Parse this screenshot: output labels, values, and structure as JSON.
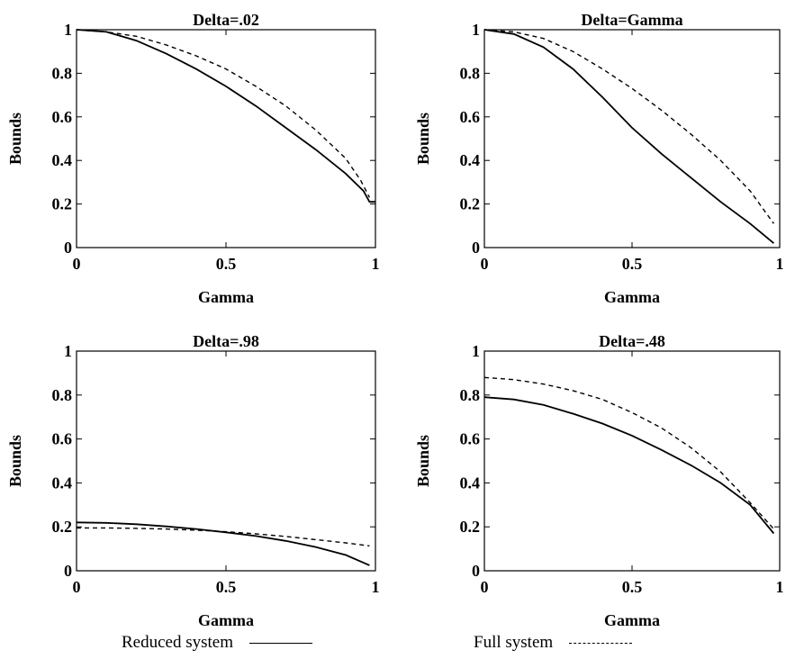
{
  "legend": {
    "reduced_label": "Reduced system",
    "full_label": "Full system"
  },
  "chart_data": [
    {
      "type": "line",
      "title": "Delta=.02",
      "xlabel": "Gamma",
      "ylabel": "Bounds",
      "xlim": [
        0,
        1
      ],
      "ylim": [
        0,
        1
      ],
      "xticks": [
        "0",
        "0.5",
        "1"
      ],
      "yticks": [
        "0",
        "0.2",
        "0.4",
        "0.6",
        "0.8",
        "1"
      ],
      "grid": false,
      "series": [
        {
          "name": "Reduced system",
          "style": "solid",
          "x": [
            0,
            0.1,
            0.2,
            0.3,
            0.4,
            0.5,
            0.6,
            0.7,
            0.8,
            0.9,
            0.96,
            0.98,
            1.0
          ],
          "y": [
            1.0,
            0.99,
            0.95,
            0.89,
            0.82,
            0.74,
            0.65,
            0.55,
            0.45,
            0.34,
            0.26,
            0.21,
            0.21
          ]
        },
        {
          "name": "Full system",
          "style": "dashed",
          "x": [
            0,
            0.1,
            0.2,
            0.3,
            0.4,
            0.5,
            0.6,
            0.7,
            0.8,
            0.9,
            0.95,
            0.98
          ],
          "y": [
            1.0,
            0.99,
            0.97,
            0.93,
            0.88,
            0.82,
            0.74,
            0.65,
            0.54,
            0.41,
            0.31,
            0.23
          ]
        }
      ]
    },
    {
      "type": "line",
      "title": "Delta=Gamma",
      "xlabel": "Gamma",
      "ylabel": "Bounds",
      "xlim": [
        0,
        1
      ],
      "ylim": [
        0,
        1
      ],
      "xticks": [
        "0",
        "0.5",
        "1"
      ],
      "yticks": [
        "0",
        "0.2",
        "0.4",
        "0.6",
        "0.8",
        "1"
      ],
      "grid": false,
      "series": [
        {
          "name": "Reduced system",
          "style": "solid",
          "x": [
            0,
            0.1,
            0.2,
            0.3,
            0.4,
            0.5,
            0.6,
            0.7,
            0.8,
            0.9,
            0.98
          ],
          "y": [
            1.0,
            0.98,
            0.92,
            0.82,
            0.69,
            0.55,
            0.43,
            0.32,
            0.21,
            0.11,
            0.02
          ]
        },
        {
          "name": "Full system",
          "style": "dashed",
          "x": [
            0,
            0.1,
            0.2,
            0.3,
            0.4,
            0.5,
            0.6,
            0.7,
            0.8,
            0.9,
            0.98
          ],
          "y": [
            1.0,
            0.99,
            0.96,
            0.9,
            0.82,
            0.73,
            0.63,
            0.52,
            0.4,
            0.26,
            0.11
          ]
        }
      ]
    },
    {
      "type": "line",
      "title": "Delta=.98",
      "xlabel": "Gamma",
      "ylabel": "Bounds",
      "xlim": [
        0,
        1
      ],
      "ylim": [
        0,
        1
      ],
      "xticks": [
        "0",
        "0.5",
        "1"
      ],
      "yticks": [
        "0",
        "0.2",
        "0.4",
        "0.6",
        "0.8",
        "1"
      ],
      "grid": false,
      "series": [
        {
          "name": "Reduced system",
          "style": "solid",
          "x": [
            0,
            0.1,
            0.2,
            0.3,
            0.4,
            0.5,
            0.6,
            0.7,
            0.8,
            0.9,
            0.98
          ],
          "y": [
            0.22,
            0.218,
            0.212,
            0.202,
            0.19,
            0.175,
            0.158,
            0.136,
            0.108,
            0.072,
            0.025
          ]
        },
        {
          "name": "Full system",
          "style": "dashed",
          "x": [
            0,
            0.1,
            0.2,
            0.3,
            0.4,
            0.5,
            0.6,
            0.7,
            0.8,
            0.9,
            0.98
          ],
          "y": [
            0.195,
            0.195,
            0.193,
            0.19,
            0.185,
            0.178,
            0.168,
            0.156,
            0.142,
            0.127,
            0.113
          ]
        }
      ]
    },
    {
      "type": "line",
      "title": "Delta=.48",
      "xlabel": "Gamma",
      "ylabel": "Bounds",
      "xlim": [
        0,
        1
      ],
      "ylim": [
        0,
        1
      ],
      "xticks": [
        "0",
        "0.5",
        "1"
      ],
      "yticks": [
        "0",
        "0.2",
        "0.4",
        "0.6",
        "0.8",
        "1"
      ],
      "grid": false,
      "series": [
        {
          "name": "Reduced system",
          "style": "solid",
          "x": [
            0,
            0.1,
            0.2,
            0.3,
            0.4,
            0.5,
            0.6,
            0.7,
            0.8,
            0.9,
            0.98
          ],
          "y": [
            0.79,
            0.78,
            0.755,
            0.715,
            0.67,
            0.615,
            0.55,
            0.48,
            0.4,
            0.3,
            0.17
          ]
        },
        {
          "name": "Full system",
          "style": "dashed",
          "x": [
            0,
            0.1,
            0.2,
            0.3,
            0.4,
            0.5,
            0.6,
            0.7,
            0.8,
            0.9,
            0.98
          ],
          "y": [
            0.88,
            0.87,
            0.85,
            0.82,
            0.78,
            0.72,
            0.65,
            0.56,
            0.45,
            0.31,
            0.19
          ]
        }
      ]
    }
  ]
}
